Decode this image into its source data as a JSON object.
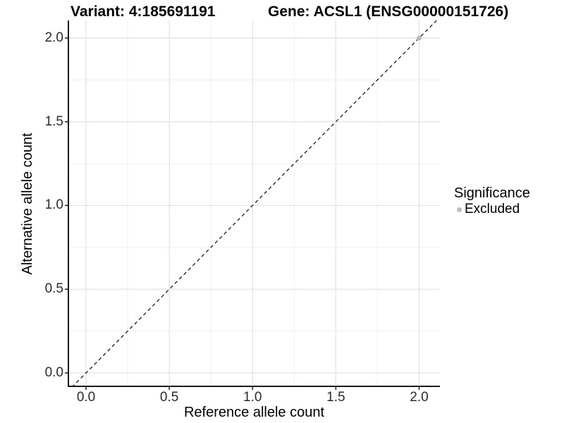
{
  "title": {
    "variant": "Variant: 4:185691191",
    "gene": "Gene: ACSL1 (ENSG00000151726)"
  },
  "axes": {
    "x_label": "Reference allele count",
    "y_label": "Alternative allele count"
  },
  "legend": {
    "title": "Significance",
    "items": [
      {
        "label": "Excluded",
        "color": "#bdbdbd"
      }
    ]
  },
  "chart_data": {
    "type": "scatter",
    "title": "Variant: 4:185691191 | Gene: ACSL1 (ENSG00000151726)",
    "xlabel": "Reference allele count",
    "ylabel": "Alternative allele count",
    "xlim": [
      -0.106,
      2.125
    ],
    "ylim": [
      -0.08,
      2.105
    ],
    "x_ticks": [
      0.0,
      0.5,
      1.0,
      1.5,
      2.0
    ],
    "y_ticks": [
      0.0,
      0.5,
      1.0,
      1.5,
      2.0
    ],
    "minor_ticks": [
      0.25,
      0.75,
      1.25,
      1.75
    ],
    "tick_decimals": 1,
    "grid": true,
    "legend_position": "right",
    "series": [
      {
        "name": "Excluded",
        "color": "#bdbdbd",
        "points": [
          [
            2.0,
            2.0
          ]
        ],
        "point_radius": 3.5
      }
    ],
    "reference_line": {
      "type": "identity",
      "style": "dashed",
      "from": [
        -0.3,
        -0.3
      ],
      "to": [
        2.4,
        2.4
      ],
      "color": "#1a1a1a"
    },
    "colors": {
      "background": "#ffffff",
      "grid_major": "#e3e3e3",
      "grid_minor": "#f0f0f0",
      "axis_line": "#1a1a1a",
      "tick_mark": "#1a1a1a",
      "tick_text": "#2b2b2b",
      "point": "#bdbdbd"
    }
  }
}
